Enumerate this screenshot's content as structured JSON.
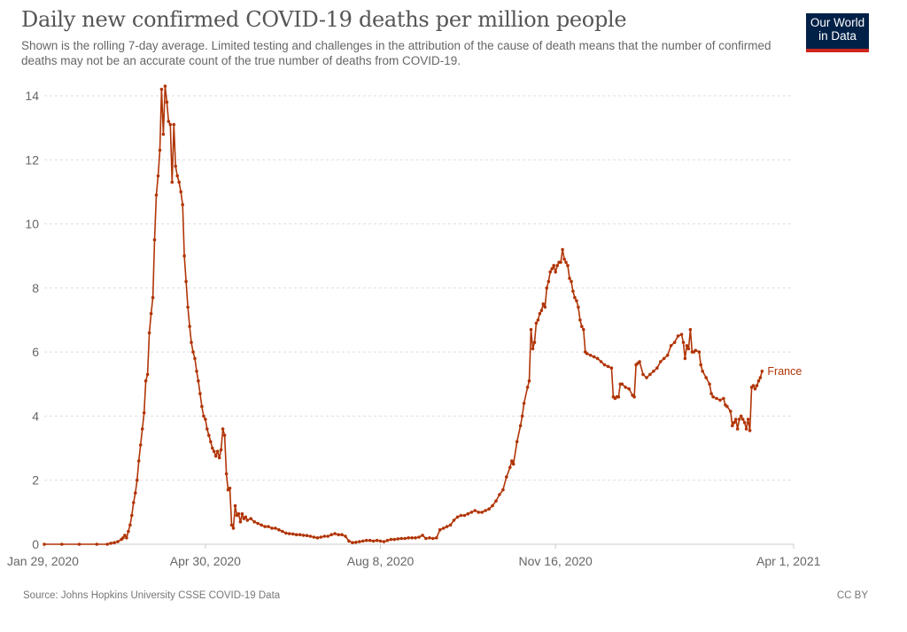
{
  "header": {
    "title": "Daily new confirmed COVID-19 deaths per million people",
    "subtitle": "Shown is the rolling 7-day average. Limited testing and challenges in the attribution of the cause of death means that the number of confirmed deaths may not be an accurate count of the true number of deaths from COVID-19."
  },
  "logo": {
    "line1": "Our World",
    "line2": "in Data",
    "bg_color": "#002147",
    "accent_color": "#ce261e"
  },
  "footer": {
    "source": "Source: Johns Hopkins University CSSE COVID-19 Data",
    "license": "CC BY"
  },
  "chart_data": {
    "type": "line",
    "title": "Daily new confirmed COVID-19 deaths per million people",
    "xlabel": "",
    "ylabel": "",
    "x_start_date": "2020-01-29",
    "x_end_date": "2021-04-01",
    "xlim_days": [
      0,
      428
    ],
    "ylim": [
      0,
      14
    ],
    "grid": true,
    "y_ticks": [
      0,
      2,
      4,
      6,
      8,
      10,
      12,
      14
    ],
    "x_ticks": [
      {
        "label": "Jan 29, 2020",
        "day": 0
      },
      {
        "label": "Apr 30, 2020",
        "day": 92
      },
      {
        "label": "Aug 8, 2020",
        "day": 192
      },
      {
        "label": "Nov 16, 2020",
        "day": 292
      },
      {
        "label": "Apr 1, 2021",
        "day": 428
      }
    ],
    "series": [
      {
        "name": "France",
        "color": "#b13507",
        "points_day_value": [
          [
            0,
            0
          ],
          [
            10,
            0
          ],
          [
            20,
            0
          ],
          [
            30,
            0
          ],
          [
            36,
            0
          ],
          [
            38,
            0.03
          ],
          [
            40,
            0.05
          ],
          [
            42,
            0.08
          ],
          [
            44,
            0.15
          ],
          [
            45,
            0.2
          ],
          [
            46,
            0.28
          ],
          [
            47,
            0.2
          ],
          [
            48,
            0.4
          ],
          [
            49,
            0.6
          ],
          [
            50,
            0.9
          ],
          [
            51,
            1.3
          ],
          [
            52,
            1.6
          ],
          [
            53,
            2.0
          ],
          [
            54,
            2.6
          ],
          [
            55,
            3.1
          ],
          [
            56,
            3.6
          ],
          [
            57,
            4.1
          ],
          [
            58,
            5.1
          ],
          [
            59,
            5.3
          ],
          [
            60,
            6.6
          ],
          [
            61,
            7.2
          ],
          [
            62,
            7.7
          ],
          [
            63,
            9.5
          ],
          [
            64,
            10.9
          ],
          [
            65,
            11.5
          ],
          [
            66,
            12.3
          ],
          [
            67,
            14.2
          ],
          [
            68,
            12.8
          ],
          [
            69,
            14.3
          ],
          [
            70,
            13.8
          ],
          [
            71,
            13.2
          ],
          [
            72,
            13.1
          ],
          [
            73,
            11.3
          ],
          [
            74,
            13.1
          ],
          [
            75,
            11.8
          ],
          [
            76,
            11.5
          ],
          [
            77,
            11.3
          ],
          [
            78,
            11.0
          ],
          [
            79,
            10.6
          ],
          [
            80,
            9.0
          ],
          [
            81,
            8.2
          ],
          [
            82,
            7.4
          ],
          [
            83,
            6.8
          ],
          [
            84,
            6.3
          ],
          [
            85,
            6.0
          ],
          [
            86,
            5.8
          ],
          [
            87,
            5.4
          ],
          [
            88,
            5.1
          ],
          [
            89,
            4.7
          ],
          [
            90,
            4.3
          ],
          [
            91,
            4.0
          ],
          [
            92,
            3.9
          ],
          [
            93,
            3.6
          ],
          [
            94,
            3.4
          ],
          [
            95,
            3.2
          ],
          [
            96,
            3.0
          ],
          [
            97,
            2.9
          ],
          [
            98,
            2.75
          ],
          [
            99,
            2.9
          ],
          [
            100,
            2.7
          ],
          [
            101,
            2.95
          ],
          [
            102,
            3.6
          ],
          [
            103,
            3.4
          ],
          [
            104,
            2.2
          ],
          [
            105,
            1.7
          ],
          [
            106,
            1.75
          ],
          [
            107,
            0.6
          ],
          [
            108,
            0.5
          ],
          [
            109,
            1.2
          ],
          [
            110,
            0.9
          ],
          [
            111,
            0.95
          ],
          [
            112,
            0.7
          ],
          [
            113,
            0.95
          ],
          [
            114,
            0.8
          ],
          [
            115,
            0.85
          ],
          [
            116,
            0.75
          ],
          [
            118,
            0.8
          ],
          [
            120,
            0.7
          ],
          [
            122,
            0.65
          ],
          [
            124,
            0.6
          ],
          [
            126,
            0.55
          ],
          [
            128,
            0.55
          ],
          [
            130,
            0.5
          ],
          [
            132,
            0.5
          ],
          [
            134,
            0.45
          ],
          [
            136,
            0.4
          ],
          [
            138,
            0.35
          ],
          [
            140,
            0.33
          ],
          [
            142,
            0.32
          ],
          [
            144,
            0.3
          ],
          [
            146,
            0.3
          ],
          [
            148,
            0.28
          ],
          [
            150,
            0.27
          ],
          [
            152,
            0.25
          ],
          [
            154,
            0.22
          ],
          [
            156,
            0.2
          ],
          [
            158,
            0.22
          ],
          [
            160,
            0.25
          ],
          [
            162,
            0.25
          ],
          [
            164,
            0.3
          ],
          [
            166,
            0.33
          ],
          [
            168,
            0.3
          ],
          [
            170,
            0.3
          ],
          [
            172,
            0.25
          ],
          [
            174,
            0.1
          ],
          [
            176,
            0.05
          ],
          [
            178,
            0.06
          ],
          [
            180,
            0.08
          ],
          [
            182,
            0.1
          ],
          [
            184,
            0.12
          ],
          [
            186,
            0.12
          ],
          [
            188,
            0.1
          ],
          [
            190,
            0.12
          ],
          [
            192,
            0.1
          ],
          [
            194,
            0.08
          ],
          [
            196,
            0.12
          ],
          [
            198,
            0.15
          ],
          [
            200,
            0.15
          ],
          [
            202,
            0.17
          ],
          [
            204,
            0.18
          ],
          [
            206,
            0.18
          ],
          [
            208,
            0.2
          ],
          [
            210,
            0.2
          ],
          [
            212,
            0.2
          ],
          [
            214,
            0.22
          ],
          [
            216,
            0.28
          ],
          [
            218,
            0.18
          ],
          [
            220,
            0.2
          ],
          [
            222,
            0.18
          ],
          [
            224,
            0.2
          ],
          [
            226,
            0.45
          ],
          [
            228,
            0.5
          ],
          [
            230,
            0.55
          ],
          [
            232,
            0.6
          ],
          [
            234,
            0.75
          ],
          [
            236,
            0.85
          ],
          [
            238,
            0.9
          ],
          [
            240,
            0.9
          ],
          [
            242,
            0.95
          ],
          [
            244,
            1.0
          ],
          [
            246,
            1.05
          ],
          [
            248,
            1.0
          ],
          [
            250,
            1.0
          ],
          [
            252,
            1.05
          ],
          [
            254,
            1.1
          ],
          [
            256,
            1.2
          ],
          [
            258,
            1.35
          ],
          [
            260,
            1.55
          ],
          [
            262,
            1.7
          ],
          [
            264,
            2.1
          ],
          [
            266,
            2.4
          ],
          [
            267,
            2.6
          ],
          [
            268,
            2.5
          ],
          [
            270,
            3.2
          ],
          [
            272,
            3.7
          ],
          [
            273,
            4.0
          ],
          [
            274,
            4.4
          ],
          [
            276,
            4.9
          ],
          [
            277,
            5.1
          ],
          [
            278,
            6.7
          ],
          [
            279,
            6.1
          ],
          [
            280,
            6.3
          ],
          [
            281,
            6.9
          ],
          [
            282,
            7.0
          ],
          [
            283,
            7.2
          ],
          [
            284,
            7.3
          ],
          [
            285,
            7.5
          ],
          [
            286,
            7.4
          ],
          [
            287,
            8.0
          ],
          [
            288,
            8.2
          ],
          [
            289,
            8.5
          ],
          [
            290,
            8.6
          ],
          [
            291,
            8.7
          ],
          [
            292,
            8.5
          ],
          [
            293,
            8.7
          ],
          [
            294,
            8.8
          ],
          [
            295,
            8.8
          ],
          [
            296,
            9.2
          ],
          [
            297,
            8.9
          ],
          [
            298,
            8.8
          ],
          [
            299,
            8.7
          ],
          [
            300,
            8.3
          ],
          [
            301,
            8.2
          ],
          [
            302,
            7.9
          ],
          [
            303,
            7.7
          ],
          [
            304,
            7.6
          ],
          [
            305,
            7.4
          ],
          [
            306,
            7.0
          ],
          [
            307,
            6.8
          ],
          [
            308,
            6.7
          ],
          [
            309,
            6.0
          ],
          [
            310,
            5.95
          ],
          [
            312,
            5.9
          ],
          [
            314,
            5.85
          ],
          [
            316,
            5.8
          ],
          [
            318,
            5.7
          ],
          [
            320,
            5.6
          ],
          [
            322,
            5.55
          ],
          [
            324,
            5.5
          ],
          [
            325,
            4.6
          ],
          [
            326,
            4.55
          ],
          [
            327,
            4.6
          ],
          [
            328,
            4.6
          ],
          [
            329,
            5.0
          ],
          [
            330,
            5.0
          ],
          [
            332,
            4.9
          ],
          [
            334,
            4.85
          ],
          [
            336,
            4.65
          ],
          [
            337,
            4.6
          ],
          [
            338,
            5.6
          ],
          [
            339,
            5.65
          ],
          [
            340,
            5.7
          ],
          [
            342,
            5.3
          ],
          [
            344,
            5.2
          ],
          [
            346,
            5.3
          ],
          [
            348,
            5.4
          ],
          [
            350,
            5.5
          ],
          [
            352,
            5.7
          ],
          [
            354,
            5.8
          ],
          [
            356,
            5.9
          ],
          [
            358,
            6.2
          ],
          [
            360,
            6.3
          ],
          [
            362,
            6.5
          ],
          [
            364,
            6.55
          ],
          [
            365,
            6.3
          ],
          [
            366,
            5.8
          ],
          [
            367,
            6.2
          ],
          [
            368,
            6.1
          ],
          [
            369,
            6.7
          ],
          [
            370,
            6.0
          ],
          [
            371,
            6.0
          ],
          [
            372,
            6.05
          ],
          [
            374,
            6.0
          ],
          [
            375,
            5.6
          ],
          [
            376,
            5.4
          ],
          [
            378,
            5.2
          ],
          [
            380,
            5.0
          ],
          [
            381,
            4.7
          ],
          [
            382,
            4.6
          ],
          [
            384,
            4.55
          ],
          [
            386,
            4.5
          ],
          [
            388,
            4.55
          ],
          [
            389,
            4.35
          ],
          [
            390,
            4.3
          ],
          [
            392,
            4.15
          ],
          [
            393,
            3.7
          ],
          [
            394,
            3.8
          ],
          [
            395,
            3.9
          ],
          [
            396,
            3.6
          ],
          [
            397,
            3.9
          ],
          [
            398,
            4.0
          ],
          [
            399,
            3.9
          ],
          [
            400,
            3.8
          ],
          [
            401,
            3.6
          ],
          [
            402,
            3.9
          ],
          [
            403,
            3.55
          ],
          [
            404,
            4.9
          ],
          [
            405,
            4.95
          ],
          [
            406,
            4.85
          ],
          [
            407,
            4.95
          ],
          [
            408,
            5.1
          ],
          [
            409,
            5.2
          ],
          [
            410,
            5.4
          ]
        ]
      }
    ]
  }
}
